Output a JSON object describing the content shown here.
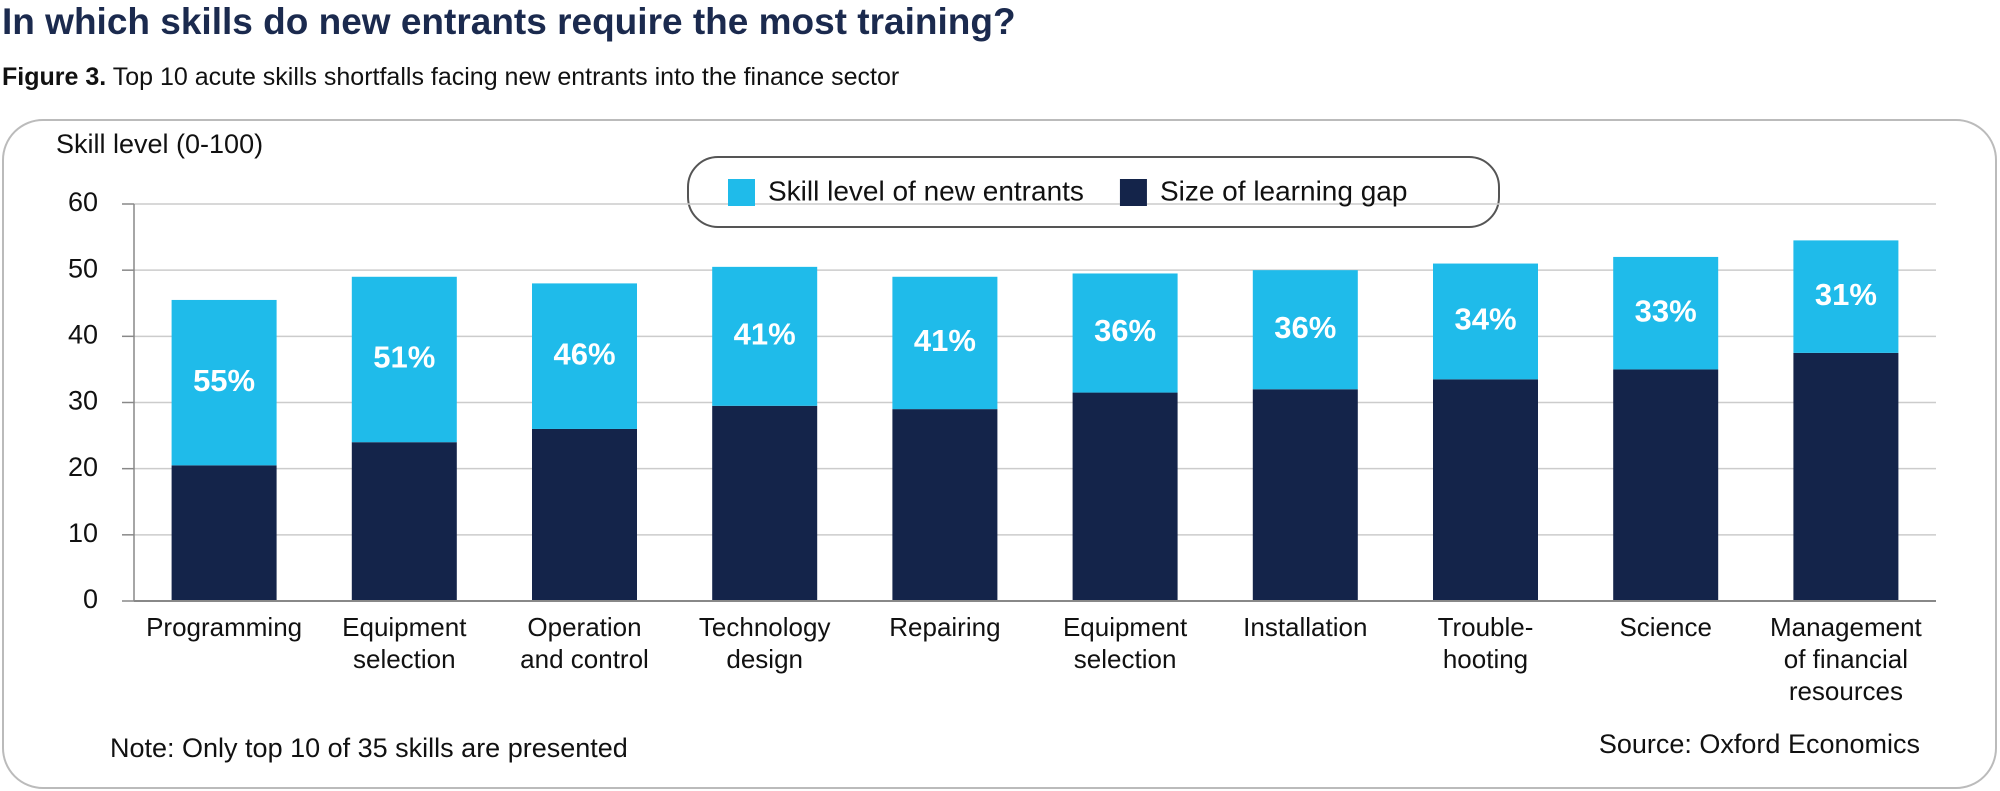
{
  "chart_data": {
    "type": "stacked_bar",
    "title": "In which skills do new entrants require the most training?",
    "subtitle_label": "Figure 3.",
    "subtitle": "Top 10 acute skills shortfalls facing new entrants into the finance sector",
    "y_label": "Skill level (0-100)",
    "categories": [
      [
        "Programming"
      ],
      [
        "Equipment",
        "selection"
      ],
      [
        "Operation",
        "and control"
      ],
      [
        "Technology",
        "design"
      ],
      [
        "Repairing"
      ],
      [
        "Equipment",
        "selection"
      ],
      [
        "Installation"
      ],
      [
        "Trouble-",
        "hooting"
      ],
      [
        "Science"
      ],
      [
        "Management",
        "of financial",
        "resources"
      ]
    ],
    "series": [
      {
        "name": "Size of learning gap",
        "color": "#14244a",
        "values": [
          20.5,
          24,
          26,
          29.5,
          29,
          31.5,
          32,
          33.5,
          35,
          37.5
        ]
      },
      {
        "name": "Skill level of new entrants",
        "color": "#1fbbea",
        "values": [
          25,
          25,
          22,
          21,
          20,
          18,
          18,
          17.5,
          17,
          17
        ]
      }
    ],
    "bar_labels": [
      "55%",
      "51%",
      "46%",
      "41%",
      "41%",
      "36%",
      "36%",
      "34%",
      "33%",
      "31%"
    ],
    "ylim": [
      0,
      60
    ],
    "yticks": [
      0,
      10,
      20,
      30,
      40,
      50,
      60
    ],
    "grid": true,
    "note": "Note: Only top 10 of 35 skills are presented",
    "source": "Source: Oxford Economics"
  }
}
